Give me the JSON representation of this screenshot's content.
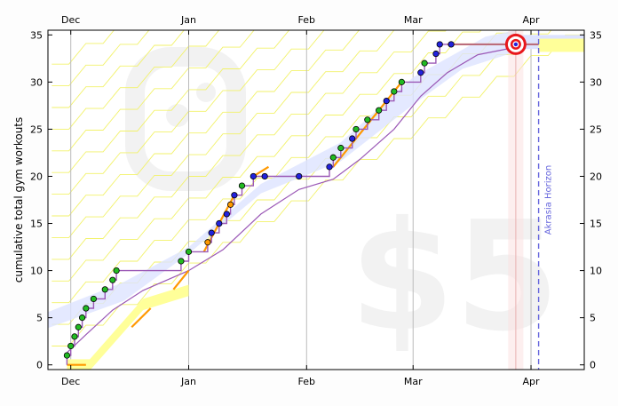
{
  "chart_data": {
    "type": "line",
    "title": "",
    "ylabel": "cumulative total gym workouts",
    "xlabel": "",
    "ylim": [
      0,
      35
    ],
    "xlim": [
      "2013-11-25",
      "2014-04-15"
    ],
    "x_ticks": [
      {
        "label": "Dec",
        "date": "2013-12-01"
      },
      {
        "label": "Jan",
        "date": "2014-01-01"
      },
      {
        "label": "Feb",
        "date": "2014-02-01"
      },
      {
        "label": "Mar",
        "date": "2014-03-01"
      },
      {
        "label": "Apr",
        "date": "2014-04-01"
      }
    ],
    "y_ticks": [
      0,
      5,
      10,
      15,
      20,
      25,
      30,
      35
    ],
    "grid": "vertical at month starts",
    "watermark_text": "$5",
    "akrasia_horizon_label": "Akrasia Horizon",
    "akrasia_horizon_date": "2014-04-03",
    "today_date": "2014-03-28",
    "colors": {
      "steps": "#9b59b6",
      "road_band": "#dde3ff",
      "lane_yellow": "#ffff99",
      "orange": "#ff9900",
      "point_green": "#22bb22",
      "point_blue": "#2222dd",
      "horizon": "#6666dd",
      "target_red": "#e8171c"
    },
    "data_points": [
      {
        "date": "2013-11-30",
        "value": 1,
        "color": "green"
      },
      {
        "date": "2013-12-01",
        "value": 2,
        "color": "green"
      },
      {
        "date": "2013-12-02",
        "value": 3,
        "color": "green"
      },
      {
        "date": "2013-12-03",
        "value": 4,
        "color": "green"
      },
      {
        "date": "2013-12-04",
        "value": 5,
        "color": "green"
      },
      {
        "date": "2013-12-05",
        "value": 6,
        "color": "green"
      },
      {
        "date": "2013-12-07",
        "value": 7,
        "color": "green"
      },
      {
        "date": "2013-12-10",
        "value": 8,
        "color": "green"
      },
      {
        "date": "2013-12-12",
        "value": 9,
        "color": "green"
      },
      {
        "date": "2013-12-13",
        "value": 10,
        "color": "green"
      },
      {
        "date": "2013-12-30",
        "value": 11,
        "color": "green"
      },
      {
        "date": "2014-01-01",
        "value": 12,
        "color": "green"
      },
      {
        "date": "2014-01-06",
        "value": 13,
        "color": "orange"
      },
      {
        "date": "2014-01-07",
        "value": 14,
        "color": "blue"
      },
      {
        "date": "2014-01-09",
        "value": 15,
        "color": "blue"
      },
      {
        "date": "2014-01-11",
        "value": 16,
        "color": "blue"
      },
      {
        "date": "2014-01-12",
        "value": 17,
        "color": "orange"
      },
      {
        "date": "2014-01-13",
        "value": 18,
        "color": "blue"
      },
      {
        "date": "2014-01-15",
        "value": 19,
        "color": "green"
      },
      {
        "date": "2014-01-18",
        "value": 20,
        "color": "blue"
      },
      {
        "date": "2014-01-21",
        "value": 20,
        "color": "blue"
      },
      {
        "date": "2014-01-30",
        "value": 20,
        "color": "blue"
      },
      {
        "date": "2014-02-07",
        "value": 21,
        "color": "blue"
      },
      {
        "date": "2014-02-08",
        "value": 22,
        "color": "green"
      },
      {
        "date": "2014-02-10",
        "value": 23,
        "color": "green"
      },
      {
        "date": "2014-02-13",
        "value": 24,
        "color": "blue"
      },
      {
        "date": "2014-02-14",
        "value": 25,
        "color": "green"
      },
      {
        "date": "2014-02-17",
        "value": 26,
        "color": "green"
      },
      {
        "date": "2014-02-20",
        "value": 27,
        "color": "green"
      },
      {
        "date": "2014-02-22",
        "value": 28,
        "color": "blue"
      },
      {
        "date": "2014-02-24",
        "value": 29,
        "color": "green"
      },
      {
        "date": "2014-02-26",
        "value": 30,
        "color": "green"
      },
      {
        "date": "2014-03-03",
        "value": 31,
        "color": "blue"
      },
      {
        "date": "2014-03-04",
        "value": 32,
        "color": "green"
      },
      {
        "date": "2014-03-07",
        "value": 33,
        "color": "blue"
      },
      {
        "date": "2014-03-08",
        "value": 34,
        "color": "blue"
      },
      {
        "date": "2014-03-11",
        "value": 34,
        "color": "blue"
      },
      {
        "date": "2014-03-28",
        "value": 34,
        "color": "blue"
      }
    ]
  }
}
